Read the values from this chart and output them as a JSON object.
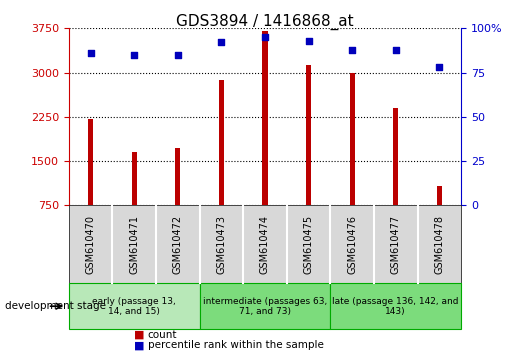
{
  "title": "GDS3894 / 1416868_at",
  "samples": [
    "GSM610470",
    "GSM610471",
    "GSM610472",
    "GSM610473",
    "GSM610474",
    "GSM610475",
    "GSM610476",
    "GSM610477",
    "GSM610478"
  ],
  "counts": [
    2220,
    1650,
    1720,
    2880,
    3700,
    3130,
    2990,
    2400,
    1080
  ],
  "percentile_ranks": [
    86,
    85,
    85,
    92,
    95,
    93,
    88,
    88,
    78
  ],
  "ylim_left": [
    750,
    3750
  ],
  "ylim_right": [
    0,
    100
  ],
  "yticks_left": [
    750,
    1500,
    2250,
    3000,
    3750
  ],
  "yticks_right": [
    0,
    25,
    50,
    75,
    100
  ],
  "bar_color": "#bb0000",
  "dot_color": "#0000bb",
  "bg_color": "#ffffff",
  "tick_bg_color": "#d8d8d8",
  "group_colors": [
    "#b8e8b8",
    "#7cdc7c",
    "#7cdc7c"
  ],
  "group_border_color": "#00aa00",
  "groups": [
    {
      "label": "early (passage 13,\n14, and 15)",
      "start": 0,
      "end": 2
    },
    {
      "label": "intermediate (passages 63,\n71, and 73)",
      "start": 3,
      "end": 5
    },
    {
      "label": "late (passage 136, 142, and\n143)",
      "start": 6,
      "end": 8
    }
  ],
  "xlabel_dev": "development stage",
  "legend_count": "count",
  "legend_pct": "percentile rank within the sample",
  "title_color": "#000000",
  "left_axis_color": "#cc0000",
  "right_axis_color": "#0000cc",
  "bar_width": 0.12
}
